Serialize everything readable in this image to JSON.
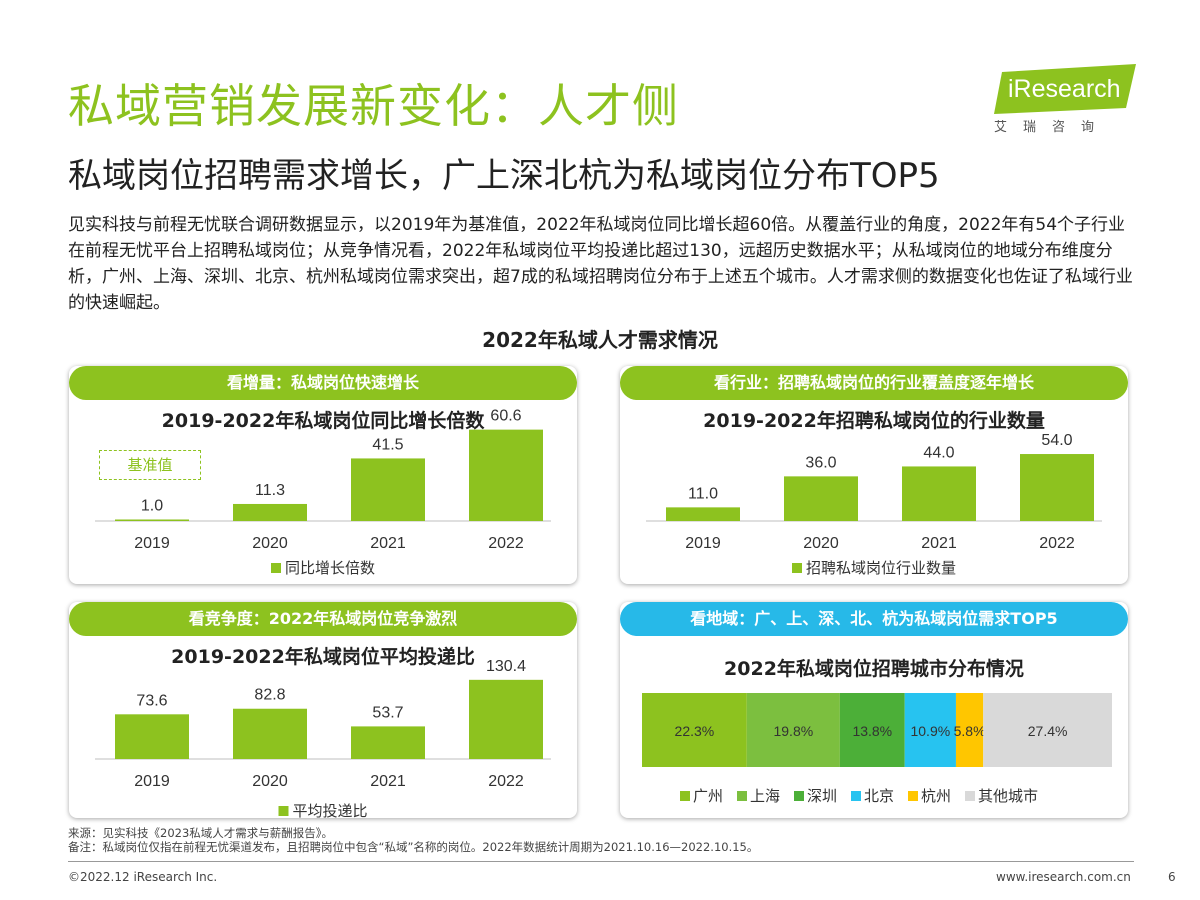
{
  "header": {
    "title": "私域营销发展新变化：人才侧",
    "subtitle": "私域岗位招聘需求增长，广上深北杭为私域岗位分布TOP5",
    "logo_text": "iResearch",
    "logo_sub": "艾瑞咨询",
    "intro": "见实科技与前程无忧联合调研数据显示，以2019年为基准值，2022年私域岗位同比增长超60倍。从覆盖行业的角度，2022年有54个子行业在前程无忧平台上招聘私域岗位；从竞争情况看，2022年私域岗位平均投递比超过130，远超历史数据水平；从私域岗位的地域分布维度分析，广州、上海、深圳、北京、杭州私域岗位需求突出，超7成的私域招聘岗位分布于上述五个城市。人才需求侧的数据变化也佐证了私域行业的快速崛起。",
    "section_title": "2022年私域人才需求情况"
  },
  "colors": {
    "green": "#8dc21f",
    "blue": "#27b9e8"
  },
  "panels": {
    "growth": {
      "banner": "看增量：私域岗位快速增长",
      "baseline_label": "基准值"
    },
    "industry": {
      "banner": "看行业：招聘私域岗位的行业覆盖度逐年增长"
    },
    "competition": {
      "banner": "看竞争度：2022年私域岗位竞争激烈"
    },
    "region": {
      "banner": "看地域：广、上、深、北、杭为私域岗位需求TOP5"
    }
  },
  "chart_data": [
    {
      "type": "bar",
      "title": "2019-2022年私域岗位同比增长倍数",
      "categories": [
        "2019",
        "2020",
        "2021",
        "2022"
      ],
      "series": [
        {
          "name": "同比增长倍数",
          "values": [
            1.0,
            11.3,
            41.5,
            60.6
          ],
          "color": "#8dc21f"
        }
      ],
      "data_labels": [
        "1.0",
        "11.3",
        "41.5",
        "60.6"
      ],
      "ylim": [
        0,
        65
      ]
    },
    {
      "type": "bar",
      "title": "2019-2022年招聘私域岗位的行业数量",
      "categories": [
        "2019",
        "2020",
        "2021",
        "2022"
      ],
      "series": [
        {
          "name": "招聘私域岗位行业数量",
          "values": [
            11.0,
            36.0,
            44.0,
            54.0
          ],
          "color": "#8dc21f"
        }
      ],
      "data_labels": [
        "11.0",
        "36.0",
        "44.0",
        "54.0"
      ],
      "ylim": [
        0,
        75
      ]
    },
    {
      "type": "bar",
      "title": "2019-2022年私域岗位平均投递比",
      "categories": [
        "2019",
        "2020",
        "2021",
        "2022"
      ],
      "series": [
        {
          "name": "平均投递比",
          "values": [
            73.6,
            82.8,
            53.7,
            130.4
          ],
          "color": "#8dc21f"
        }
      ],
      "data_labels": [
        "73.6",
        "82.8",
        "53.7",
        "130.4"
      ],
      "ylim": [
        0,
        140
      ]
    },
    {
      "type": "bar",
      "title": "2022年私域岗位招聘城市分布情况",
      "stacked": true,
      "orientation": "horizontal",
      "series": [
        {
          "name": "广州",
          "values": [
            22.3
          ],
          "label": "22.3%",
          "color": "#8dc21f"
        },
        {
          "name": "上海",
          "values": [
            19.8
          ],
          "label": "19.8%",
          "color": "#7cbf3f"
        },
        {
          "name": "深圳",
          "values": [
            13.8
          ],
          "label": "13.8%",
          "color": "#4caf38"
        },
        {
          "name": "北京",
          "values": [
            10.9
          ],
          "label": "10.9%",
          "color": "#27c3f0"
        },
        {
          "name": "杭州",
          "values": [
            5.8
          ],
          "label": "5.8%",
          "color": "#ffc600"
        },
        {
          "name": "其他城市",
          "values": [
            27.4
          ],
          "label": "27.4%",
          "color": "#d9d9d9"
        }
      ],
      "xlim": [
        0,
        100
      ]
    }
  ],
  "footer": {
    "source": "来源：见实科技《2023私域人才需求与薪酬报告》。",
    "note": "备注：私域岗位仅指在前程无忧渠道发布，且招聘岗位中包含“私域”名称的岗位。2022年数据统计周期为2021.10.16—2022.10.15。",
    "copyright": "©2022.12 iResearch Inc.",
    "website": "www.iresearch.com.cn",
    "page": "6"
  }
}
